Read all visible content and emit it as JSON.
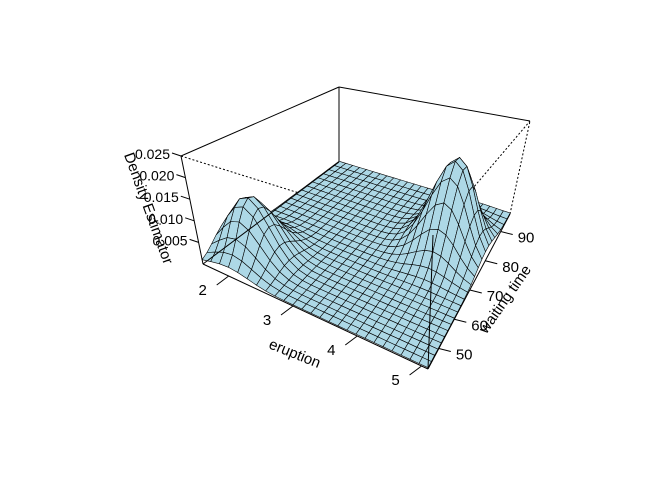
{
  "chart_data": {
    "type": "surface",
    "title": "",
    "xlabel": "eruption",
    "ylabel": "waiting time",
    "zlabel": "Density Estimator",
    "x_ticks": [
      "2",
      "3",
      "4",
      "5"
    ],
    "y_ticks": [
      "50",
      "60",
      "70",
      "80",
      "90"
    ],
    "z_ticks": [
      "0.005",
      "0.010",
      "0.015",
      "0.020",
      "0.025"
    ],
    "xlim": [
      1.6,
      5.1
    ],
    "ylim": [
      43,
      96
    ],
    "zlim": [
      0,
      0.025
    ],
    "grid_size": 25,
    "surface_color": "#add8e6",
    "line_color": "#000000",
    "peaks": [
      {
        "eruption": 2.0,
        "waiting": 54,
        "density": 0.0135
      },
      {
        "eruption": 4.4,
        "waiting": 80,
        "density": 0.0218
      }
    ]
  }
}
